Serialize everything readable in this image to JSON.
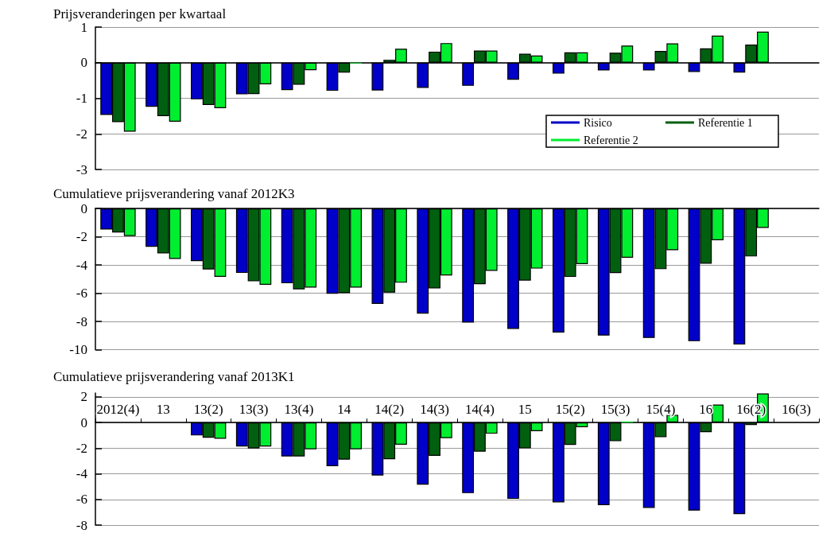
{
  "chart_data": [
    {
      "type": "bar",
      "title": "Prijsveranderingen per kwartaal",
      "categories": [
        null,
        null,
        null,
        null,
        null,
        null,
        null,
        null,
        null,
        null,
        null,
        null,
        null,
        null,
        null,
        null
      ],
      "series": [
        {
          "name": "Risico",
          "color": "#0000c8",
          "values": [
            -1.47,
            -1.24,
            -1.03,
            -0.89,
            -0.77,
            -0.79,
            -0.78,
            -0.71,
            -0.65,
            -0.48,
            -0.31,
            -0.22,
            -0.22,
            -0.26,
            -0.28,
            null
          ]
        },
        {
          "name": "Referentie 1",
          "color": "#006010",
          "values": [
            -1.67,
            -1.5,
            -1.19,
            -0.88,
            -0.62,
            -0.28,
            0.08,
            0.31,
            0.34,
            0.25,
            0.29,
            0.28,
            0.33,
            0.4,
            0.51,
            null
          ]
        },
        {
          "name": "Referentie 2",
          "color": "#00ee30",
          "values": [
            -1.94,
            -1.66,
            -1.28,
            -0.61,
            -0.21,
            -0.02,
            0.39,
            0.55,
            0.34,
            0.2,
            0.29,
            0.48,
            0.54,
            0.76,
            0.87,
            null
          ]
        }
      ],
      "ylim": [
        -3,
        1
      ],
      "yticks": [
        -3,
        -2,
        -1,
        0,
        1
      ],
      "grid": "y",
      "legend": "bottom right",
      "tick_labels": "y"
    },
    {
      "type": "bar",
      "title": "Cumulatieve prijsverandering vanaf 2012K3",
      "categories": [
        null,
        null,
        null,
        null,
        null,
        null,
        null,
        null,
        null,
        null,
        null,
        null,
        null,
        null,
        null,
        null
      ],
      "series": [
        {
          "color": "#0000c8",
          "values": [
            -1.49,
            -2.72,
            -3.73,
            -4.57,
            -5.3,
            -6.04,
            -6.76,
            -7.45,
            -8.08,
            -8.53,
            -8.79,
            -9.0,
            -9.17,
            -9.4,
            -9.64,
            null
          ]
        },
        {
          "color": "#006010",
          "values": [
            -1.7,
            -3.18,
            -4.32,
            -5.16,
            -5.73,
            -6.0,
            -5.96,
            -5.66,
            -5.36,
            -5.11,
            -4.85,
            -4.58,
            -4.3,
            -3.91,
            -3.4,
            null
          ]
        },
        {
          "color": "#00ee30",
          "values": [
            -1.96,
            -3.58,
            -4.84,
            -5.41,
            -5.6,
            -5.6,
            -5.26,
            -4.74,
            -4.42,
            -4.26,
            -3.94,
            -3.49,
            -2.96,
            -2.25,
            -1.38,
            null
          ]
        }
      ],
      "ylim": [
        -10,
        0
      ],
      "yticks": [
        -10,
        -8,
        -6,
        -4,
        -2,
        0
      ],
      "grid": "y",
      "tick_labels": "y"
    },
    {
      "type": "bar",
      "title": "Cumulatieve prijsverandering vanaf 2013K1",
      "categories": [
        "2012(4)",
        "13",
        "13(2)",
        "13(3)",
        "13(4)",
        "14",
        "14(2)",
        "14(3)",
        "14(4)",
        "15",
        "15(2)",
        "15(3)",
        "15(4)",
        "16",
        "16(2)",
        "16(3)"
      ],
      "series": [
        {
          "color": "#0000c8",
          "values": [
            null,
            null,
            -1.01,
            -1.87,
            -2.65,
            -3.41,
            -4.13,
            -4.85,
            -5.51,
            -5.96,
            -6.23,
            -6.45,
            -6.66,
            -6.87,
            -7.15,
            null
          ]
        },
        {
          "color": "#006010",
          "values": [
            null,
            null,
            -1.19,
            -2.03,
            -2.65,
            -2.9,
            -2.87,
            -2.6,
            -2.27,
            -2.02,
            -1.75,
            -1.46,
            -1.15,
            -0.76,
            -0.19,
            null
          ]
        },
        {
          "color": "#00ee30",
          "values": [
            null,
            null,
            -1.27,
            -1.87,
            -2.09,
            -2.09,
            -1.73,
            -1.22,
            -0.87,
            -0.68,
            -0.37,
            0.08,
            0.6,
            1.4,
            2.27,
            null
          ]
        }
      ],
      "ylim": [
        -8,
        2.3
      ],
      "yticks": [
        -8,
        -6,
        -4,
        -2,
        0,
        2
      ],
      "grid": "y"
    }
  ]
}
